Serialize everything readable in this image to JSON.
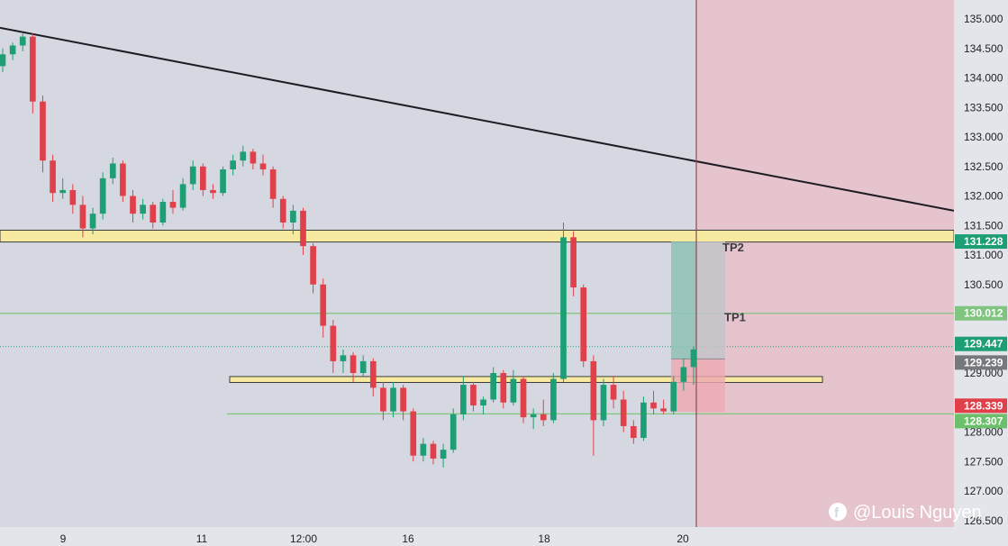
{
  "chart_data": {
    "type": "candlestick",
    "ylim": [
      126.5,
      135.25
    ],
    "y_ticks": [
      "135.000",
      "134.500",
      "134.000",
      "133.500",
      "133.000",
      "132.500",
      "132.000",
      "131.500",
      "131.000",
      "130.500",
      "130.000",
      "129.500",
      "129.000",
      "128.500",
      "128.000",
      "127.500",
      "127.000",
      "126.500"
    ],
    "x_ticks": [
      "9",
      "11",
      "12:00",
      "16",
      "18",
      "20"
    ],
    "candles": [
      [
        134.2,
        134.5,
        134.1,
        134.4
      ],
      [
        134.4,
        134.6,
        134.3,
        134.55
      ],
      [
        134.55,
        134.75,
        134.45,
        134.7
      ],
      [
        134.7,
        134.75,
        133.4,
        133.6
      ],
      [
        133.6,
        133.7,
        132.4,
        132.6
      ],
      [
        132.6,
        132.7,
        131.9,
        132.05
      ],
      [
        132.05,
        132.3,
        131.95,
        132.1
      ],
      [
        132.1,
        132.2,
        131.7,
        131.85
      ],
      [
        131.85,
        132.0,
        131.3,
        131.45
      ],
      [
        131.45,
        131.8,
        131.35,
        131.7
      ],
      [
        131.7,
        132.4,
        131.6,
        132.3
      ],
      [
        132.3,
        132.65,
        132.2,
        132.55
      ],
      [
        132.55,
        132.6,
        131.9,
        132.0
      ],
      [
        132.0,
        132.1,
        131.55,
        131.7
      ],
      [
        131.7,
        131.95,
        131.6,
        131.85
      ],
      [
        131.85,
        131.9,
        131.45,
        131.55
      ],
      [
        131.55,
        131.95,
        131.5,
        131.9
      ],
      [
        131.9,
        132.1,
        131.7,
        131.8
      ],
      [
        131.8,
        132.3,
        131.75,
        132.2
      ],
      [
        132.2,
        132.6,
        132.1,
        132.5
      ],
      [
        132.5,
        132.55,
        132.0,
        132.1
      ],
      [
        132.1,
        132.2,
        131.95,
        132.05
      ],
      [
        132.05,
        132.5,
        132.0,
        132.45
      ],
      [
        132.45,
        132.7,
        132.35,
        132.6
      ],
      [
        132.6,
        132.85,
        132.5,
        132.75
      ],
      [
        132.75,
        132.8,
        132.45,
        132.55
      ],
      [
        132.55,
        132.7,
        132.35,
        132.45
      ],
      [
        132.45,
        132.5,
        131.8,
        131.95
      ],
      [
        131.95,
        132.0,
        131.45,
        131.55
      ],
      [
        131.55,
        131.85,
        131.35,
        131.75
      ],
      [
        131.75,
        131.8,
        131.0,
        131.15
      ],
      [
        131.15,
        131.2,
        130.35,
        130.5
      ],
      [
        130.5,
        130.6,
        129.6,
        129.8
      ],
      [
        129.8,
        129.9,
        129.0,
        129.2
      ],
      [
        129.2,
        129.4,
        129.0,
        129.3
      ],
      [
        129.3,
        129.35,
        128.85,
        129.0
      ],
      [
        129.0,
        129.3,
        128.95,
        129.2
      ],
      [
        129.2,
        129.25,
        128.6,
        128.75
      ],
      [
        128.75,
        128.85,
        128.2,
        128.35
      ],
      [
        128.35,
        128.85,
        128.25,
        128.75
      ],
      [
        128.75,
        128.8,
        128.2,
        128.35
      ],
      [
        128.35,
        128.4,
        127.5,
        127.6
      ],
      [
        127.6,
        127.9,
        127.5,
        127.8
      ],
      [
        127.8,
        127.85,
        127.45,
        127.55
      ],
      [
        127.55,
        127.8,
        127.4,
        127.7
      ],
      [
        127.7,
        128.4,
        127.65,
        128.3
      ],
      [
        128.3,
        128.95,
        128.2,
        128.8
      ],
      [
        128.8,
        128.85,
        128.35,
        128.45
      ],
      [
        128.45,
        128.6,
        128.3,
        128.55
      ],
      [
        128.55,
        129.1,
        128.5,
        129.0
      ],
      [
        129.0,
        129.05,
        128.4,
        128.5
      ],
      [
        128.5,
        129.05,
        128.45,
        128.9
      ],
      [
        128.9,
        128.95,
        128.15,
        128.25
      ],
      [
        128.25,
        128.4,
        128.05,
        128.3
      ],
      [
        128.3,
        128.55,
        128.1,
        128.2
      ],
      [
        128.2,
        129.0,
        128.15,
        128.9
      ],
      [
        128.9,
        131.55,
        128.85,
        131.3
      ],
      [
        131.3,
        131.4,
        130.3,
        130.45
      ],
      [
        130.45,
        130.5,
        129.1,
        129.2
      ],
      [
        129.2,
        129.3,
        127.6,
        128.2
      ],
      [
        128.2,
        128.9,
        128.1,
        128.8
      ],
      [
        128.8,
        128.95,
        128.4,
        128.55
      ],
      [
        128.55,
        128.7,
        128.0,
        128.1
      ],
      [
        128.1,
        128.2,
        127.8,
        127.9
      ],
      [
        127.9,
        128.6,
        127.85,
        128.5
      ],
      [
        128.5,
        128.7,
        128.3,
        128.4
      ],
      [
        128.4,
        128.55,
        128.3,
        128.35
      ],
      [
        128.35,
        128.95,
        128.3,
        128.85
      ],
      [
        128.85,
        129.25,
        128.7,
        129.1
      ],
      [
        129.1,
        129.45,
        128.8,
        129.4
      ]
    ],
    "levels": [
      {
        "label": "131.228",
        "value": 131.228,
        "color": "#1e9e74"
      },
      {
        "label": "130.012",
        "value": 130.012,
        "color": "#7fc47f"
      },
      {
        "label": "129.447",
        "value": 129.447,
        "color": "#1e9e74"
      },
      {
        "label": "129.239",
        "value": 129.239,
        "color": "#77787e"
      },
      {
        "label": "128.339",
        "value": 128.339,
        "color": "#e0404a"
      },
      {
        "label": "128.307",
        "value": 128.307,
        "color": "#6cc06c"
      }
    ],
    "annotations": {
      "tp1": "TP1",
      "tp2": "TP2",
      "resistance_zone": [
        131.22,
        131.42
      ],
      "support_zone": [
        128.84,
        128.94
      ],
      "entry": 129.239,
      "stop_loss": 128.339,
      "take_profit": 131.228,
      "trendline": [
        [
          0,
          134.85
        ],
        [
          1059,
          131.75
        ]
      ],
      "vertical_line_at": "20"
    },
    "colors": {
      "background": "#d6d8e1",
      "bull": "#1e9e74",
      "bear": "#e0404a",
      "zone_fill": "#f7e9a0",
      "green_line": "#7fc47f",
      "red_shade": "#e6c4cd",
      "trend": "#1c1c22"
    }
  },
  "watermark": {
    "icon": "facebook-icon",
    "text": "@Louis Nguyen"
  }
}
